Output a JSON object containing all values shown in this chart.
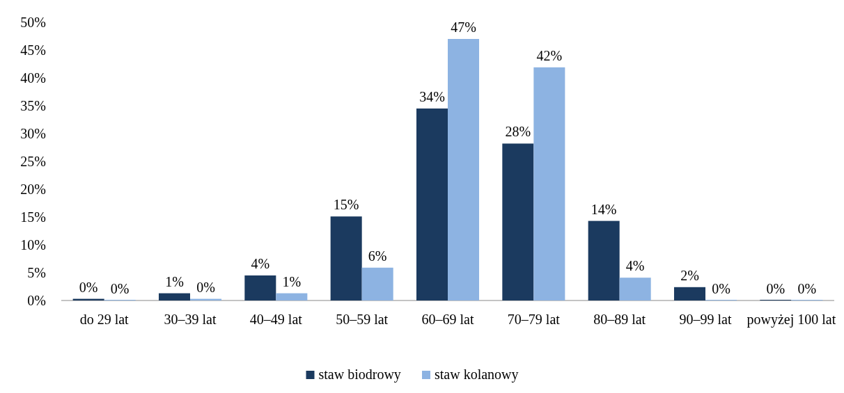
{
  "chart_data": {
    "type": "bar",
    "categories": [
      "do 29 lat",
      "30–39 lat",
      "40–49 lat",
      "50–59 lat",
      "60–69 lat",
      "70–79 lat",
      "80–89 lat",
      "90–99 lat",
      "powyżej 100 lat"
    ],
    "series": [
      {
        "name": "staw biodrowy",
        "color": "#1b3a5f",
        "values": [
          0.3,
          1.3,
          4.5,
          15.1,
          34.5,
          28.2,
          14.3,
          2.4,
          0
        ],
        "value_labels": [
          "0%",
          "1%",
          "4%",
          "15%",
          "34%",
          "28%",
          "14%",
          "2%",
          "0%"
        ]
      },
      {
        "name": "staw kolanowy",
        "color": "#8db3e2",
        "values": [
          0,
          0.3,
          1.3,
          5.9,
          47,
          41.9,
          4.1,
          0,
          0
        ],
        "value_labels": [
          "0%",
          "0%",
          "1%",
          "6%",
          "47%",
          "42%",
          "4%",
          "0%",
          "0%"
        ]
      }
    ],
    "ylim": [
      0,
      50
    ],
    "yticks": [
      {
        "value": 0,
        "label": "0%"
      },
      {
        "value": 5,
        "label": "5%"
      },
      {
        "value": 10,
        "label": "10%"
      },
      {
        "value": 15,
        "label": "15%"
      },
      {
        "value": 20,
        "label": "20%"
      },
      {
        "value": 25,
        "label": "25%"
      },
      {
        "value": 30,
        "label": "30%"
      },
      {
        "value": 35,
        "label": "35%"
      },
      {
        "value": 40,
        "label": "40%"
      },
      {
        "value": 45,
        "label": "45%"
      },
      {
        "value": 50,
        "label": "50%"
      }
    ],
    "legend": "bottom"
  }
}
